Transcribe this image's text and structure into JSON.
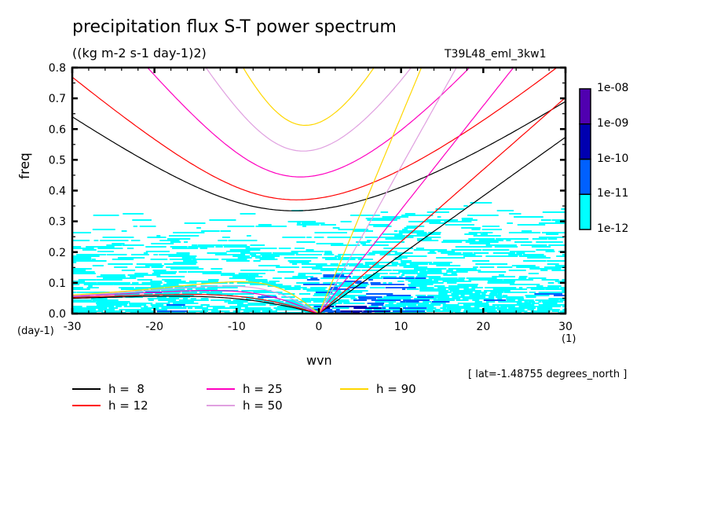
{
  "chart_data": {
    "type": "heatmap",
    "title": "precipitation flux S-T power spectrum",
    "units": "((kg m-2 s-1 day-1)2)",
    "experiment": "T39L48_eml_3kw1",
    "xlabel": "wvn",
    "ylabel": "freq",
    "x_units": "(1)",
    "y_units": "(day-1)",
    "xlim": [
      -30,
      30
    ],
    "ylim": [
      0,
      0.8
    ],
    "xticks": [
      "-30",
      "-20",
      "-10",
      "0",
      "10",
      "20",
      "30"
    ],
    "yticks": [
      "0.0",
      "0.1",
      "0.2",
      "0.3",
      "0.4",
      "0.5",
      "0.6",
      "0.7",
      "0.8"
    ],
    "annotation": "[ lat=-1.48755 degrees_north ]",
    "colorbar": {
      "levels": [
        "1e-12",
        "1e-11",
        "1e-10",
        "1e-09",
        "1e-08"
      ],
      "colors": [
        "#00ffff",
        "#0060ff",
        "#0000b0",
        "#5000b0"
      ]
    },
    "dispersion_curves": [
      {
        "label": "h =  8",
        "h": 8,
        "color": "#000000"
      },
      {
        "label": "h = 12",
        "h": 12,
        "color": "#ff0000"
      },
      {
        "label": "h = 25",
        "h": 25,
        "color": "#ff00c0"
      },
      {
        "label": "h = 50",
        "h": 50,
        "color": "#e0a0e0"
      },
      {
        "label": "h = 90",
        "h": 90,
        "color": "#ffd700"
      }
    ]
  }
}
